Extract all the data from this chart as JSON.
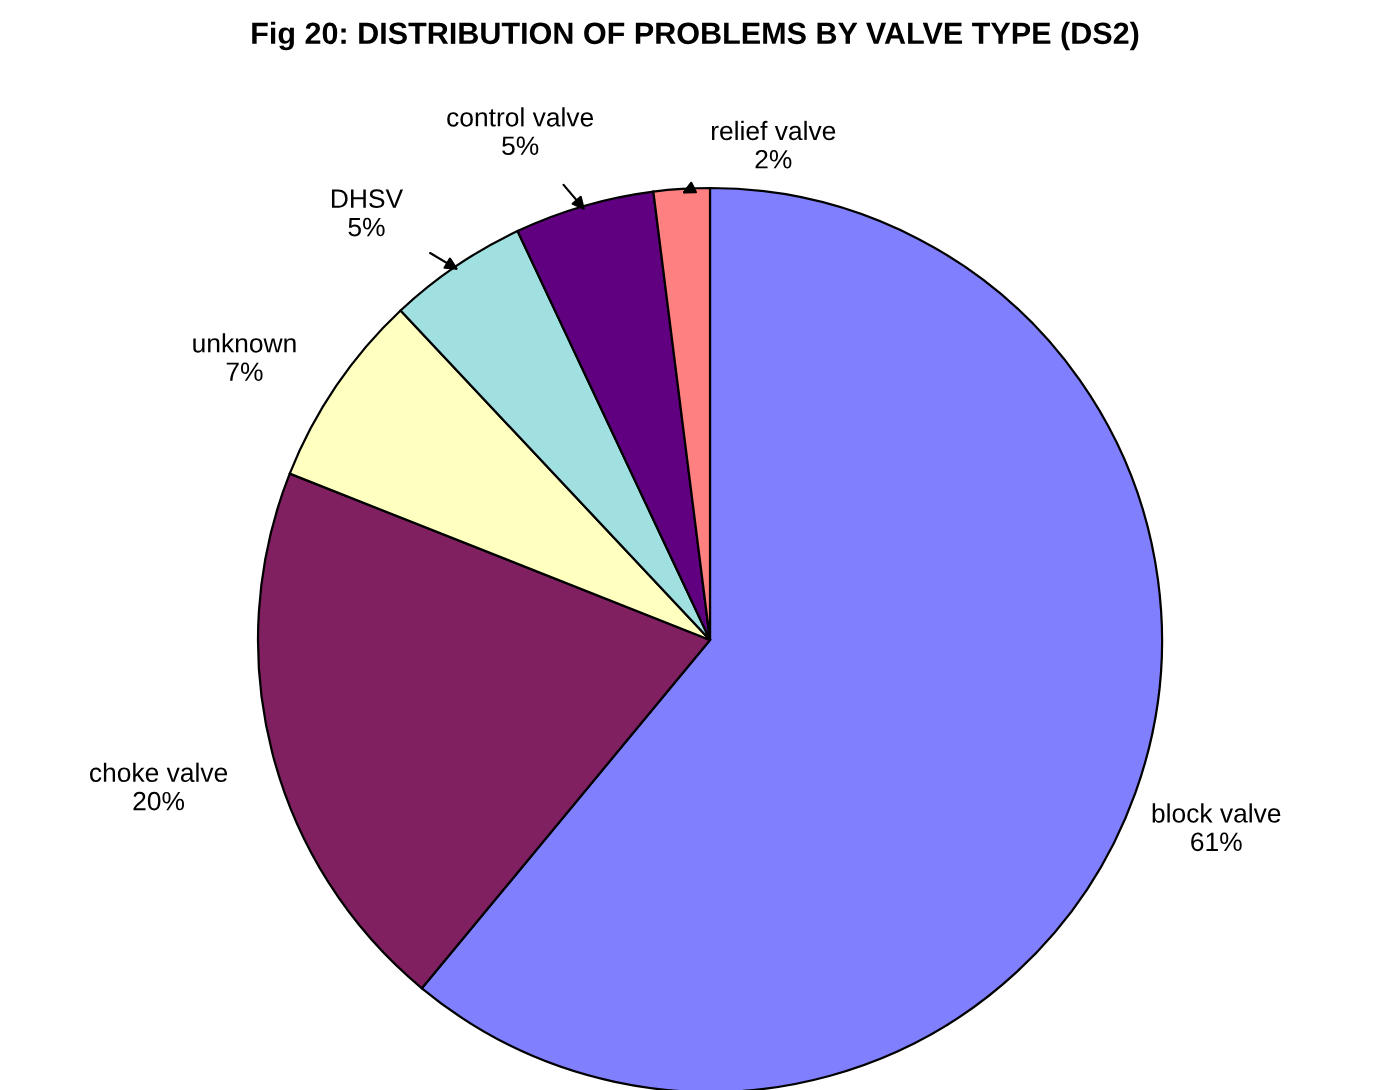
{
  "chart_data": {
    "type": "pie",
    "title": "Fig 20: DISTRIBUTION OF PROBLEMS BY VALVE TYPE (DS2)",
    "categories": [
      "block valve",
      "choke valve",
      "unknown",
      "DHSV",
      "control valve",
      "relief valve"
    ],
    "values": [
      61,
      20,
      7,
      5,
      5,
      2
    ],
    "colors": [
      "#8080ff",
      "#802060",
      "#ffffc0",
      "#a0e0e0",
      "#600080",
      "#ff8080"
    ],
    "value_labels": [
      "61%",
      "20%",
      "7%",
      "5%",
      "5%",
      "2%"
    ],
    "legend": false
  }
}
